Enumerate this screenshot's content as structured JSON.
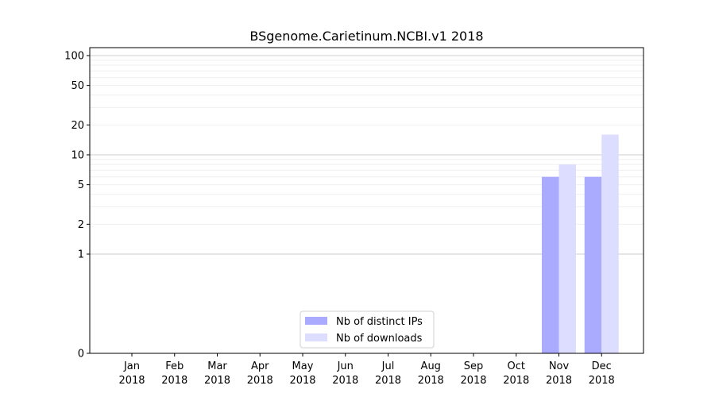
{
  "chart_data": {
    "type": "bar",
    "title": "BSgenome.Carietinum.NCBI.v1 2018",
    "xlabel": "",
    "ylabel": "",
    "y_scale": "symlog",
    "ylim": [
      0,
      130
    ],
    "y_ticks": [
      {
        "value": 0,
        "label": "0"
      },
      {
        "value": 1,
        "label": "1"
      },
      {
        "value": 2,
        "label": "2"
      },
      {
        "value": 5,
        "label": "5"
      },
      {
        "value": 10,
        "label": "10"
      },
      {
        "value": 20,
        "label": "20"
      },
      {
        "value": 50,
        "label": "50"
      },
      {
        "value": 100,
        "label": "100"
      }
    ],
    "categories": [
      [
        "Jan",
        "2018"
      ],
      [
        "Feb",
        "2018"
      ],
      [
        "Mar",
        "2018"
      ],
      [
        "Apr",
        "2018"
      ],
      [
        "May",
        "2018"
      ],
      [
        "Jun",
        "2018"
      ],
      [
        "Jul",
        "2018"
      ],
      [
        "Aug",
        "2018"
      ],
      [
        "Sep",
        "2018"
      ],
      [
        "Oct",
        "2018"
      ],
      [
        "Nov",
        "2018"
      ],
      [
        "Dec",
        "2018"
      ]
    ],
    "series": [
      {
        "name": "Nb of distinct IPs",
        "color": "#aaaaff",
        "values": [
          0,
          0,
          0,
          0,
          0,
          0,
          0,
          0,
          0,
          0,
          6,
          6
        ]
      },
      {
        "name": "Nb of downloads",
        "color": "#ddddff",
        "values": [
          0,
          0,
          0,
          0,
          0,
          0,
          0,
          0,
          0,
          0,
          8,
          16
        ]
      }
    ],
    "grid": "horizontal",
    "legend_position": "bottom-center"
  }
}
